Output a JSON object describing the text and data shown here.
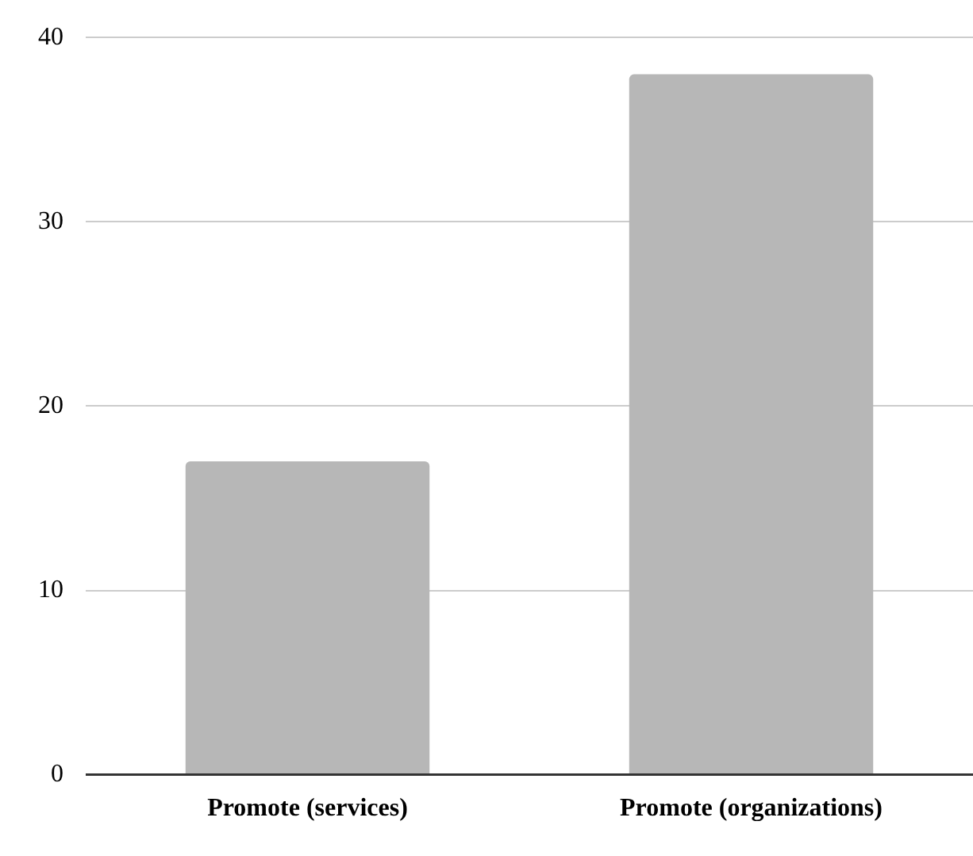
{
  "chart_data": {
    "type": "bar",
    "categories": [
      "Promote (services)",
      "Promote (organizations)"
    ],
    "values": [
      17,
      38
    ],
    "color": "#b7b7b7",
    "ylim": [
      0,
      40
    ],
    "yticks": [
      0,
      10,
      20,
      30,
      40
    ],
    "grid": "y",
    "legend": false
  }
}
